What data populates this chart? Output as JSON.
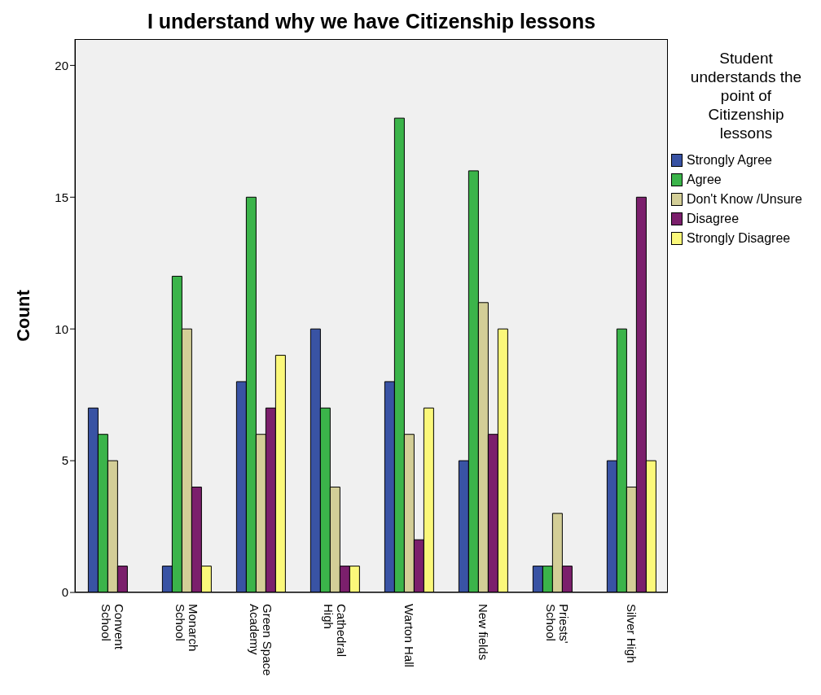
{
  "chart_data": {
    "type": "bar",
    "title": "I understand why we have Citizenship lessons",
    "ylabel": "Count",
    "legend_title": "Student understands the point of Citizenship lessons",
    "categories": [
      "Convent\nSchool",
      "Monarch\nSchool",
      "Green Space\nAcademy",
      "Cathedral\nHigh",
      "Warton Hall",
      "New fields",
      "Priests'\nSchool",
      "Silver High"
    ],
    "series": [
      {
        "name": "Strongly Agree",
        "color": "#3953a4",
        "values": [
          7,
          1,
          8,
          10,
          8,
          5,
          1,
          5
        ]
      },
      {
        "name": "Agree",
        "color": "#3bb44a",
        "values": [
          6,
          12,
          15,
          7,
          18,
          16,
          1,
          10
        ]
      },
      {
        "name": "Don't Know /Unsure",
        "color": "#d3ce97",
        "values": [
          5,
          10,
          6,
          4,
          6,
          11,
          3,
          4
        ]
      },
      {
        "name": "Disagree",
        "color": "#7b1f6c",
        "values": [
          1,
          4,
          7,
          1,
          2,
          6,
          1,
          15
        ]
      },
      {
        "name": "Strongly Disagree",
        "color": "#fbf87a",
        "values": [
          null,
          1,
          9,
          1,
          7,
          10,
          null,
          5
        ]
      }
    ],
    "ylim": [
      0,
      21
    ],
    "yticks": [
      0,
      5,
      10,
      15,
      20
    ],
    "grid": false,
    "legend": "right"
  }
}
